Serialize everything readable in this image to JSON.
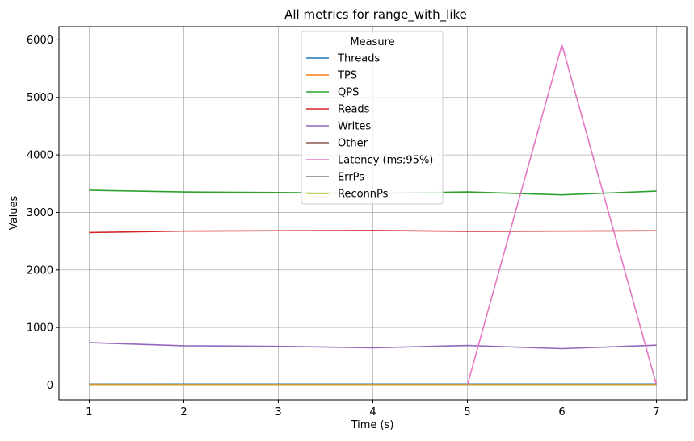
{
  "chart_data": {
    "type": "line",
    "title": "All metrics for range_with_like",
    "xlabel": "Time (s)",
    "ylabel": "Values",
    "xlim": [
      0.68,
      7.32
    ],
    "ylim": [
      -260,
      6230
    ],
    "xticks": [
      1,
      2,
      3,
      4,
      5,
      6,
      7
    ],
    "yticks": [
      0,
      1000,
      2000,
      3000,
      4000,
      5000,
      6000
    ],
    "grid": true,
    "legend": {
      "title": "Measure",
      "placement": "upper-center"
    },
    "x": [
      1,
      2,
      3,
      4,
      5,
      6,
      7
    ],
    "series": [
      {
        "name": "Threads",
        "color": "#1f77b4",
        "values": [
          16,
          16,
          16,
          16,
          16,
          16,
          16
        ]
      },
      {
        "name": "TPS",
        "color": "#ff7f0e",
        "values": [
          11,
          10,
          10,
          10,
          10,
          10,
          10
        ]
      },
      {
        "name": "QPS",
        "color": "#2ca02c",
        "values": [
          3385,
          3355,
          3345,
          3330,
          3355,
          3305,
          3370
        ]
      },
      {
        "name": "Reads",
        "color": "#d62728",
        "values": [
          2650,
          2675,
          2680,
          2685,
          2670,
          2675,
          2680
        ]
      },
      {
        "name": "Writes",
        "color": "#9467bd",
        "values": [
          735,
          680,
          670,
          645,
          685,
          630,
          690
        ]
      },
      {
        "name": "Other",
        "color": "#8c564b",
        "values": [
          0,
          0,
          0,
          0,
          0,
          0,
          0
        ]
      },
      {
        "name": "Latency (ms;95%)",
        "color": "#e377c2",
        "values": [
          0,
          0,
          0,
          0,
          0,
          5915,
          0
        ]
      },
      {
        "name": "ErrPs",
        "color": "#7f7f7f",
        "values": [
          0,
          0,
          0,
          0,
          0,
          0,
          0
        ]
      },
      {
        "name": "ReconnPs",
        "color": "#bcbd22",
        "values": [
          0,
          0,
          0,
          0,
          0,
          0,
          0
        ]
      }
    ]
  }
}
